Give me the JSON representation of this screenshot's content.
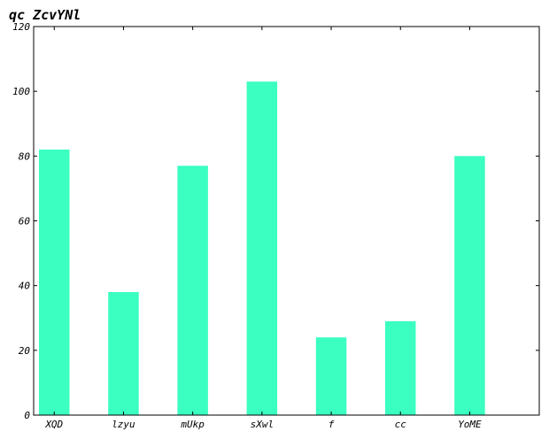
{
  "chart_data": {
    "type": "bar",
    "title": "qc ZcvYNl",
    "xlabel": "",
    "ylabel": "",
    "categories": [
      "XQD",
      "lzyu",
      "mUkp",
      "sXwl",
      "f",
      "cc",
      "YoME"
    ],
    "values": [
      82,
      38,
      77,
      103,
      24,
      29,
      80
    ],
    "ylim": [
      0,
      120
    ],
    "yticks": [
      0,
      20,
      40,
      60,
      80,
      100,
      120
    ],
    "bar_color": "#3affc0",
    "grid": false,
    "legend": "none"
  }
}
